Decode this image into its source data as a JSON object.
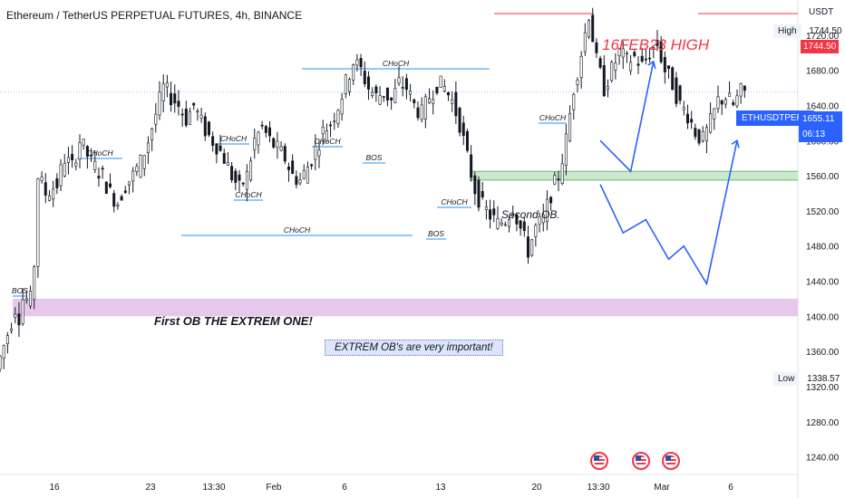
{
  "header": {
    "title": "Ethereum / TetherUS PERPETUAL FUTURES, 4h, BINANCE",
    "currency": "USDT"
  },
  "price_scale": {
    "high_tag": "High",
    "high_value": "1744.50",
    "high_marker": "1744.50",
    "low_tag": "Low",
    "low_value": "1338.57",
    "symbol": "ETHUSDTPERP",
    "last_price": "1655.11",
    "countdown": "06:13"
  },
  "annotations": {
    "high_label": "16FEB23 HIGH",
    "first_ob": "First OB THE EXTREM ONE!",
    "ob_note": "EXTREM OB's are very important!",
    "second_ob": "Second OB.",
    "structure_labels": {
      "choch": "CHoCH",
      "bos": "BOS"
    }
  },
  "event_icons": [
    "us-flag-icon",
    "us-flag-icon",
    "us-flag-icon"
  ],
  "colors": {
    "up": "#131722",
    "down": "#131722",
    "ob1_zone": "#e1bee7",
    "ob2_zone": "#c8e6c9",
    "structure_line": "#2196f3",
    "projection": "#2962ff",
    "high_line": "#f23645",
    "current_price_line": "#2962ff"
  },
  "chart_data": {
    "type": "candlestick",
    "symbol": "ETHUSDTPERP",
    "timeframe": "4h",
    "exchange": "BINANCE",
    "ylim": [
      1220,
      1760
    ],
    "y_ticks": [
      1240,
      1280,
      1320,
      1360,
      1400,
      1440,
      1480,
      1520,
      1560,
      1600,
      1640,
      1680,
      1720
    ],
    "x_tick_labels": [
      "16",
      "23",
      "13:30",
      "Feb",
      "6",
      "13",
      "20",
      "13:30",
      "Mar",
      "6"
    ],
    "session_high": 1744.5,
    "session_low": 1338.57,
    "last_price": 1655.11,
    "price_path": [
      [
        0,
        1340
      ],
      [
        3,
        1380
      ],
      [
        5,
        1410
      ],
      [
        6,
        1400
      ],
      [
        7,
        1420
      ],
      [
        9,
        1418
      ],
      [
        10,
        1460
      ],
      [
        11,
        1560
      ],
      [
        13,
        1540
      ],
      [
        16,
        1550
      ],
      [
        18,
        1580
      ],
      [
        20,
        1570
      ],
      [
        22,
        1600
      ],
      [
        25,
        1575
      ],
      [
        28,
        1560
      ],
      [
        30,
        1540
      ],
      [
        32,
        1530
      ],
      [
        34,
        1550
      ],
      [
        36,
        1560
      ],
      [
        38,
        1575
      ],
      [
        40,
        1600
      ],
      [
        42,
        1630
      ],
      [
        44,
        1660
      ],
      [
        46,
        1650
      ],
      [
        48,
        1640
      ],
      [
        50,
        1625
      ],
      [
        52,
        1640
      ],
      [
        54,
        1620
      ],
      [
        56,
        1605
      ],
      [
        58,
        1595
      ],
      [
        60,
        1580
      ],
      [
        62,
        1560
      ],
      [
        64,
        1545
      ],
      [
        66,
        1560
      ],
      [
        68,
        1600
      ],
      [
        70,
        1615
      ],
      [
        72,
        1600
      ],
      [
        74,
        1590
      ],
      [
        76,
        1580
      ],
      [
        78,
        1560
      ],
      [
        80,
        1555
      ],
      [
        82,
        1570
      ],
      [
        84,
        1590
      ],
      [
        86,
        1610
      ],
      [
        88,
        1620
      ],
      [
        90,
        1640
      ],
      [
        92,
        1665
      ],
      [
        94,
        1690
      ],
      [
        96,
        1680
      ],
      [
        98,
        1660
      ],
      [
        100,
        1650
      ],
      [
        102,
        1655
      ],
      [
        104,
        1645
      ],
      [
        106,
        1665
      ],
      [
        108,
        1660
      ],
      [
        110,
        1640
      ],
      [
        112,
        1630
      ],
      [
        114,
        1650
      ],
      [
        116,
        1665
      ],
      [
        118,
        1660
      ],
      [
        120,
        1645
      ],
      [
        122,
        1620
      ],
      [
        124,
        1580
      ],
      [
        126,
        1545
      ],
      [
        128,
        1525
      ],
      [
        130,
        1515
      ],
      [
        132,
        1505
      ],
      [
        134,
        1510
      ],
      [
        136,
        1525
      ],
      [
        138,
        1500
      ],
      [
        140,
        1475
      ],
      [
        142,
        1500
      ],
      [
        144,
        1510
      ],
      [
        146,
        1540
      ],
      [
        148,
        1560
      ],
      [
        150,
        1600
      ],
      [
        152,
        1660
      ],
      [
        154,
        1700
      ],
      [
        156,
        1745
      ],
      [
        158,
        1690
      ],
      [
        160,
        1660
      ],
      [
        162,
        1680
      ],
      [
        164,
        1700
      ],
      [
        166,
        1690
      ],
      [
        168,
        1695
      ],
      [
        170,
        1685
      ],
      [
        172,
        1700
      ],
      [
        174,
        1710
      ],
      [
        176,
        1680
      ],
      [
        178,
        1665
      ],
      [
        180,
        1640
      ],
      [
        182,
        1630
      ],
      [
        184,
        1610
      ],
      [
        186,
        1600
      ],
      [
        188,
        1620
      ],
      [
        190,
        1645
      ],
      [
        192,
        1650
      ],
      [
        194,
        1640
      ],
      [
        196,
        1655
      ]
    ],
    "zones": [
      {
        "label": "First OB THE EXTREM ONE!",
        "low": 1400,
        "high": 1420
      },
      {
        "label": "Second OB.",
        "low": 1555,
        "high": 1565
      }
    ],
    "projection_paths": [
      [
        [
          148,
          1600
        ],
        [
          156,
          1565
        ],
        [
          162,
          1690
        ]
      ],
      [
        [
          148,
          1550
        ],
        [
          154,
          1495
        ],
        [
          160,
          1510
        ],
        [
          166,
          1465
        ],
        [
          170,
          1480
        ],
        [
          176,
          1437
        ],
        [
          184,
          1600
        ]
      ]
    ]
  }
}
